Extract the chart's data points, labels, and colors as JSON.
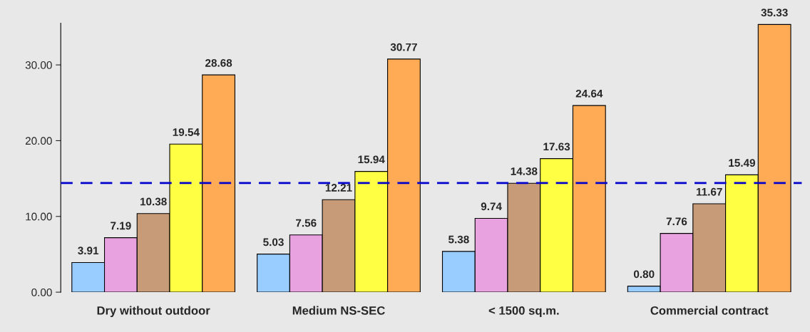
{
  "chart_data": {
    "type": "bar",
    "categories": [
      "Dry without outdoor",
      "Medium NS-SEC",
      "< 1500 sq.m.",
      "Commercial contract"
    ],
    "series": [
      {
        "color": "#99ccff",
        "values": [
          3.91,
          5.03,
          5.38,
          0.8
        ],
        "value_labels": [
          "3.91",
          "5.03",
          "5.38",
          "0.80"
        ]
      },
      {
        "color": "#e8a2e0",
        "values": [
          7.19,
          7.56,
          9.74,
          7.76
        ],
        "value_labels": [
          "7.19",
          "7.56",
          "9.74",
          "7.76"
        ]
      },
      {
        "color": "#c89b78",
        "values": [
          10.38,
          12.21,
          14.38,
          11.67
        ],
        "value_labels": [
          "10.38",
          "12.21",
          "14.38",
          "11.67"
        ]
      },
      {
        "color": "#ffff44",
        "values": [
          19.54,
          15.94,
          17.63,
          15.49
        ],
        "value_labels": [
          "19.54",
          "15.94",
          "17.63",
          "15.49"
        ]
      },
      {
        "color": "#ffaa55",
        "values": [
          28.68,
          30.77,
          24.64,
          35.33
        ],
        "value_labels": [
          "28.68",
          "30.77",
          "24.64",
          "35.33"
        ]
      }
    ],
    "ylim": [
      0,
      35.5
    ],
    "yticks": [
      {
        "value": 0,
        "label": "0.00"
      },
      {
        "value": 10,
        "label": "10.00"
      },
      {
        "value": 20,
        "label": "20.00"
      },
      {
        "value": 30,
        "label": "30.00"
      }
    ],
    "ref_lines": [
      {
        "axis": "y",
        "value": 14.4,
        "color": "#0000cc",
        "line_style": "dashed"
      }
    ],
    "grid": false,
    "legend": false
  }
}
